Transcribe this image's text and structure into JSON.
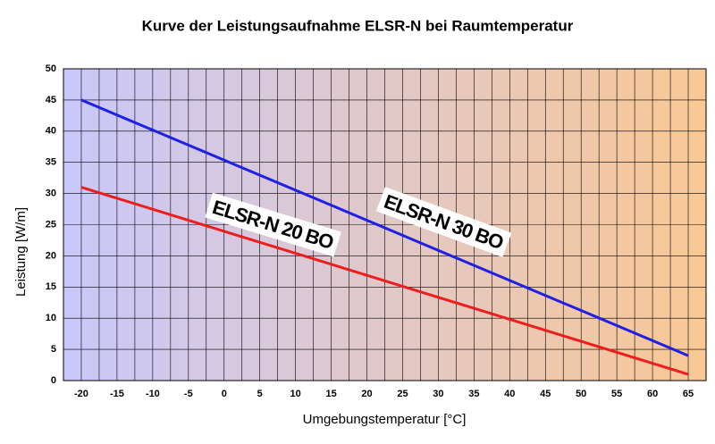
{
  "chart_data": {
    "type": "line",
    "title": "Kurve der Leistungsaufnahme ELSR-N bei Raumtemperatur",
    "x_label": "Umgebungstemperatur [°C]",
    "y_label": "Leistung   [W/m]",
    "x": [
      -20,
      65
    ],
    "series": [
      {
        "name": "ELSR-N 30 BO",
        "color": "#1f1fe6",
        "values": [
          45,
          4
        ]
      },
      {
        "name": "ELSR-N 20 BO",
        "color": "#ee1c1c",
        "values": [
          31,
          1
        ]
      }
    ],
    "xlim": [
      -22.5,
      67.5
    ],
    "xticks": [
      -20,
      -15,
      -10,
      -5,
      0,
      5,
      10,
      15,
      20,
      25,
      30,
      35,
      40,
      45,
      50,
      55,
      60,
      65
    ],
    "ylim": [
      0,
      50
    ],
    "yticks": [
      0,
      5,
      10,
      15,
      20,
      25,
      30,
      35,
      40,
      45,
      50
    ],
    "grid": true
  }
}
